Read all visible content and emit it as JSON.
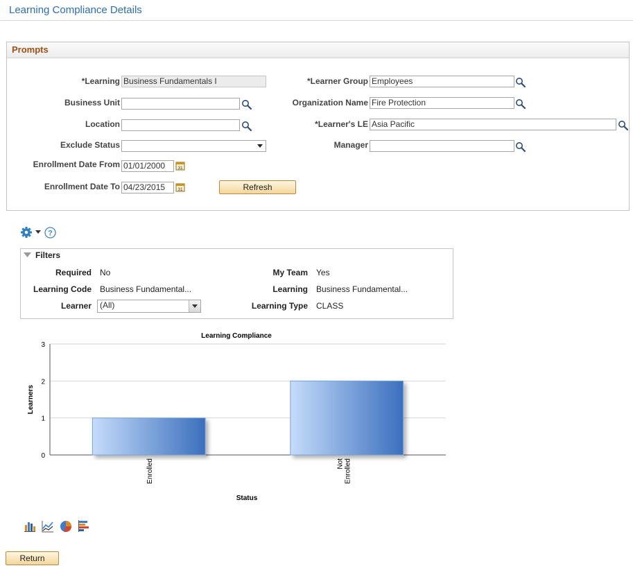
{
  "page": {
    "title": "Learning Compliance Details"
  },
  "prompts": {
    "section_title": "Prompts",
    "learning_label": "*Learning",
    "learning_value": "Business Fundamentals I",
    "business_unit_label": "Business Unit",
    "business_unit_value": "",
    "location_label": "Location",
    "location_value": "",
    "exclude_status_label": "Exclude Status",
    "exclude_status_value": "",
    "enroll_from_label": "Enrollment Date From",
    "enroll_from_value": "01/01/2000",
    "enroll_to_label": "Enrollment Date To",
    "enroll_to_value": "04/23/2015",
    "learner_group_label": "*Learner Group",
    "learner_group_value": "Employees",
    "org_name_label": "Organization Name",
    "org_name_value": "Fire Protection",
    "learners_le_label": "*Learner's LE",
    "learners_le_value": "Asia Pacific",
    "manager_label": "Manager",
    "manager_value": "",
    "refresh_label": "Refresh"
  },
  "filters": {
    "title": "Filters",
    "required_label": "Required",
    "required_value": "No",
    "learning_code_label": "Learning Code",
    "learning_code_value": "Business Fundamental...",
    "learner_label": "Learner",
    "learner_value": "(All)",
    "my_team_label": "My Team",
    "my_team_value": "Yes",
    "learning_label": "Learning",
    "learning_value": "Business Fundamental...",
    "learning_type_label": "Learning Type",
    "learning_type_value": "CLASS"
  },
  "chart_data": {
    "type": "bar",
    "title": "Learning Compliance",
    "xlabel": "Status",
    "ylabel": "Learners",
    "categories": [
      "Enrolled",
      "Not Enrolled"
    ],
    "category_lines": [
      [
        "Enrolled"
      ],
      [
        "Not",
        "Enrolled"
      ]
    ],
    "values": [
      1,
      2
    ],
    "ylim": [
      0,
      3
    ],
    "yticks": [
      "0",
      "1",
      "2",
      "3"
    ],
    "grid": true,
    "bar_color_light": "#c5dcfb",
    "bar_color_dark": "#3b6fbd"
  },
  "chart_type_icons": [
    "bar-chart-icon",
    "line-chart-icon",
    "pie-chart-icon",
    "horizontal-bar-chart-icon"
  ],
  "footer": {
    "return_label": "Return"
  }
}
